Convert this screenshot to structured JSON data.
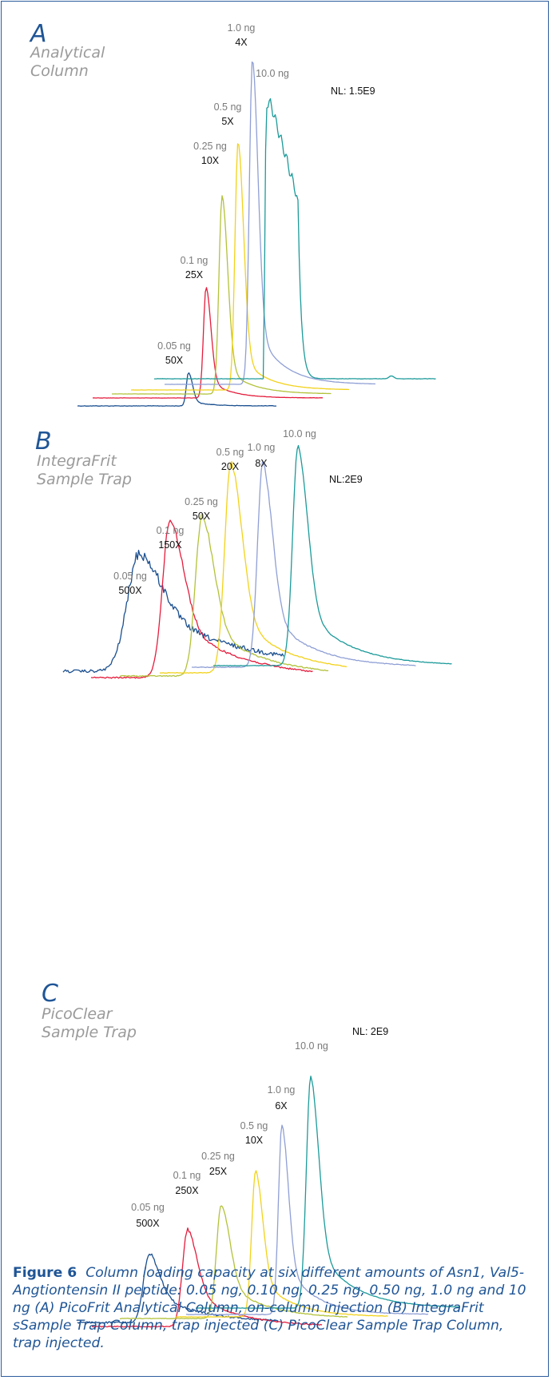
{
  "chart_data": [
    {
      "type": "line",
      "panel": "A",
      "subtitle_lines": [
        "Analytical",
        "Column"
      ],
      "normalization": "NL: 1.5E9",
      "series": [
        {
          "amount": "0.05 ng",
          "multiplier": "50X",
          "color": "#1a4f8f",
          "peak": 0.1
        },
        {
          "amount": "0.1 ng",
          "multiplier": "25X",
          "color": "#e41d3d",
          "peak": 0.33
        },
        {
          "amount": "0.25 ng",
          "multiplier": "10X",
          "color": "#b2c23a",
          "peak": 0.59
        },
        {
          "amount": "0.5 ng",
          "multiplier": "5X",
          "color": "#f2d21b",
          "peak": 0.74
        },
        {
          "amount": "1.0 ng",
          "multiplier": "4X",
          "color": "#8f9fd5",
          "peak": 0.97
        },
        {
          "amount": "10.0 ng",
          "multiplier": "",
          "color": "#1d9a9a",
          "peak": 0.82
        }
      ]
    },
    {
      "type": "line",
      "panel": "B",
      "subtitle_lines": [
        "IntegraFrit",
        "Sample Trap"
      ],
      "normalization": "NL:2E9",
      "series": [
        {
          "amount": "0.05 ng",
          "multiplier": "500X",
          "color": "#1a4f8f",
          "peak": 0.54
        },
        {
          "amount": "0.1 ng",
          "multiplier": "150X",
          "color": "#e41d3d",
          "peak": 0.72
        },
        {
          "amount": "0.25 ng",
          "multiplier": "50X",
          "color": "#b2c23a",
          "peak": 0.73
        },
        {
          "amount": "0.5 ng",
          "multiplier": "20X",
          "color": "#f2d21b",
          "peak": 0.96
        },
        {
          "amount": "1.0 ng",
          "multiplier": "8X",
          "color": "#8f9fd5",
          "peak": 0.93
        },
        {
          "amount": "10.0 ng",
          "multiplier": "",
          "color": "#1d9a9a",
          "peak": 1.0
        }
      ]
    },
    {
      "type": "line",
      "panel": "C",
      "subtitle_lines": [
        "PicoClear",
        "Sample Trap"
      ],
      "normalization": "NL: 2E9",
      "series": [
        {
          "amount": "0.05 ng",
          "multiplier": "500X",
          "color": "#1a4f8f",
          "peak": 0.3
        },
        {
          "amount": "0.1 ng",
          "multiplier": "250X",
          "color": "#e41d3d",
          "peak": 0.42
        },
        {
          "amount": "0.25 ng",
          "multiplier": "25X",
          "color": "#b2c23a",
          "peak": 0.49
        },
        {
          "amount": "0.5 ng",
          "multiplier": "10X",
          "color": "#f2d21b",
          "peak": 0.63
        },
        {
          "amount": "1.0 ng",
          "multiplier": "6X",
          "color": "#8f9fd5",
          "peak": 0.82
        },
        {
          "amount": "10.0 ng",
          "multiplier": "",
          "color": "#1d9a9a",
          "peak": 1.0
        }
      ]
    }
  ],
  "caption": {
    "label": "Figure 6",
    "text": "Column loading capacity at six different amounts of Asn1, Val5-Angtiontensin II peptide:  0.05 ng, 0.10 ng, 0.25 ng, 0.50 ng, 1.0  ng and 10 ng (A) PicoFrit Analytical Column, on-column injection (B) IntegraFrit sSample Trap Column, trap injected (C) PicoClear Sample Trap Column, trap injected."
  }
}
